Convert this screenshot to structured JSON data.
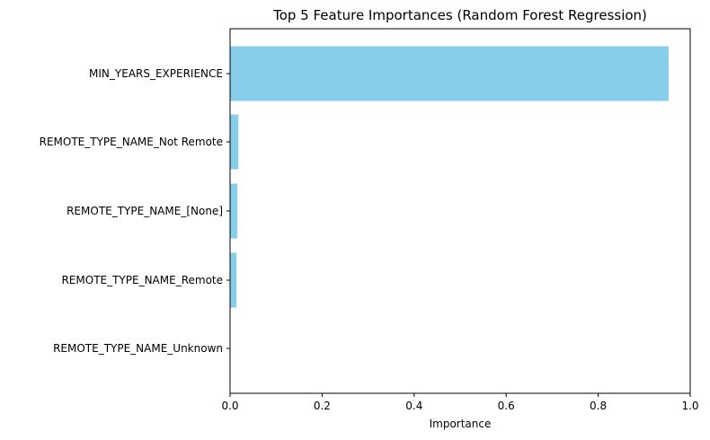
{
  "chart_data": {
    "type": "bar",
    "orientation": "horizontal",
    "title": "Top 5 Feature Importances (Random Forest Regression)",
    "xlabel": "Importance",
    "ylabel": "",
    "xlim": [
      0,
      1.0
    ],
    "xticks": [
      "0.0",
      "0.2",
      "0.4",
      "0.6",
      "0.8",
      "1.0"
    ],
    "categories": [
      "MIN_YEARS_EXPERIENCE",
      "REMOTE_TYPE_NAME_Not Remote",
      "REMOTE_TYPE_NAME_[None]",
      "REMOTE_TYPE_NAME_Remote",
      "REMOTE_TYPE_NAME_Unknown"
    ],
    "values": [
      0.953,
      0.018,
      0.016,
      0.014,
      0.0
    ],
    "bar_color": "#87CEEB",
    "grid": false,
    "legend": "none"
  }
}
